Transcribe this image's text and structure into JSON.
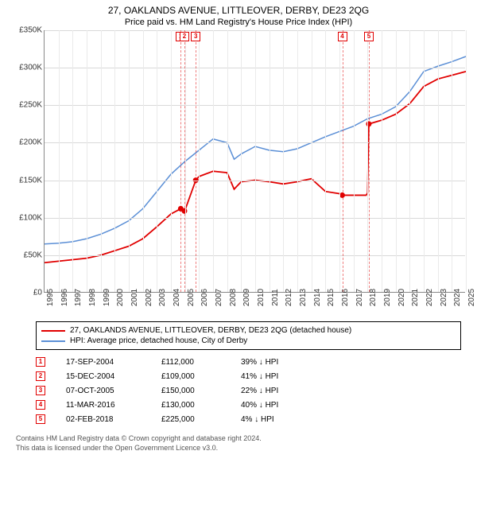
{
  "title": "27, OAKLANDS AVENUE, LITTLEOVER, DERBY, DE23 2QG",
  "subtitle": "Price paid vs. HM Land Registry's House Price Index (HPI)",
  "chart": {
    "type": "line",
    "background_color": "#ffffff",
    "grid_color": "#d9d9d9",
    "ylim": [
      0,
      350000
    ],
    "ytick_step": 50000,
    "ytick_labels": [
      "£0",
      "£50K",
      "£100K",
      "£150K",
      "£200K",
      "£250K",
      "£300K",
      "£350K"
    ],
    "xlim": [
      1995,
      2025
    ],
    "xticks": [
      1995,
      1996,
      1997,
      1998,
      1999,
      2000,
      2001,
      2002,
      2003,
      2004,
      2005,
      2006,
      2007,
      2008,
      2009,
      2010,
      2011,
      2012,
      2013,
      2014,
      2015,
      2016,
      2017,
      2018,
      2019,
      2020,
      2021,
      2022,
      2023,
      2024,
      2025
    ],
    "series": [
      {
        "name": "property",
        "label": "27, OAKLANDS AVENUE, LITTLEOVER, DERBY, DE23 2QG (detached house)",
        "color": "#e10000",
        "line_width": 1.8,
        "points": [
          [
            1995,
            40000
          ],
          [
            1996,
            42000
          ],
          [
            1997,
            44000
          ],
          [
            1998,
            46000
          ],
          [
            1999,
            50000
          ],
          [
            2000,
            56000
          ],
          [
            2001,
            62000
          ],
          [
            2002,
            72000
          ],
          [
            2003,
            88000
          ],
          [
            2004,
            105000
          ],
          [
            2004.7,
            112000
          ],
          [
            2004.96,
            109000
          ],
          [
            2005,
            110000
          ],
          [
            2005.77,
            150000
          ],
          [
            2006,
            155000
          ],
          [
            2007,
            162000
          ],
          [
            2008,
            160000
          ],
          [
            2008.5,
            138000
          ],
          [
            2009,
            148000
          ],
          [
            2010,
            150000
          ],
          [
            2011,
            148000
          ],
          [
            2012,
            145000
          ],
          [
            2013,
            148000
          ],
          [
            2014,
            152000
          ],
          [
            2015,
            135000
          ],
          [
            2016,
            132000
          ],
          [
            2016.2,
            130000
          ],
          [
            2017,
            130000
          ],
          [
            2017.9,
            130000
          ],
          [
            2018,
            133000
          ],
          [
            2018.09,
            225000
          ],
          [
            2019,
            230000
          ],
          [
            2020,
            238000
          ],
          [
            2021,
            252000
          ],
          [
            2022,
            275000
          ],
          [
            2023,
            285000
          ],
          [
            2024,
            290000
          ],
          [
            2025,
            295000
          ]
        ]
      },
      {
        "name": "hpi",
        "label": "HPI: Average price, detached house, City of Derby",
        "color": "#5b8fd6",
        "line_width": 1.5,
        "points": [
          [
            1995,
            65000
          ],
          [
            1996,
            66000
          ],
          [
            1997,
            68000
          ],
          [
            1998,
            72000
          ],
          [
            1999,
            78000
          ],
          [
            2000,
            86000
          ],
          [
            2001,
            96000
          ],
          [
            2002,
            112000
          ],
          [
            2003,
            135000
          ],
          [
            2004,
            158000
          ],
          [
            2005,
            175000
          ],
          [
            2006,
            190000
          ],
          [
            2007,
            205000
          ],
          [
            2008,
            200000
          ],
          [
            2008.5,
            178000
          ],
          [
            2009,
            185000
          ],
          [
            2010,
            195000
          ],
          [
            2011,
            190000
          ],
          [
            2012,
            188000
          ],
          [
            2013,
            192000
          ],
          [
            2014,
            200000
          ],
          [
            2015,
            208000
          ],
          [
            2016,
            215000
          ],
          [
            2017,
            222000
          ],
          [
            2018,
            232000
          ],
          [
            2019,
            238000
          ],
          [
            2020,
            248000
          ],
          [
            2021,
            268000
          ],
          [
            2022,
            295000
          ],
          [
            2023,
            302000
          ],
          [
            2024,
            308000
          ],
          [
            2025,
            315000
          ]
        ]
      }
    ],
    "sale_markers": [
      {
        "n": "1",
        "year": 2004.7,
        "price": 112000
      },
      {
        "n": "2",
        "year": 2004.96,
        "price": 109000
      },
      {
        "n": "3",
        "year": 2005.77,
        "price": 150000
      },
      {
        "n": "4",
        "year": 2016.2,
        "price": 130000
      },
      {
        "n": "5",
        "year": 2018.09,
        "price": 225000
      }
    ]
  },
  "legend": [
    {
      "color": "#e10000",
      "label": "27, OAKLANDS AVENUE, LITTLEOVER, DERBY, DE23 2QG (detached house)"
    },
    {
      "color": "#5b8fd6",
      "label": "HPI: Average price, detached house, City of Derby"
    }
  ],
  "transactions": [
    {
      "n": "1",
      "date": "17-SEP-2004",
      "price": "£112,000",
      "pct": "39% ↓ HPI"
    },
    {
      "n": "2",
      "date": "15-DEC-2004",
      "price": "£109,000",
      "pct": "41% ↓ HPI"
    },
    {
      "n": "3",
      "date": "07-OCT-2005",
      "price": "£150,000",
      "pct": "22% ↓ HPI"
    },
    {
      "n": "4",
      "date": "11-MAR-2016",
      "price": "£130,000",
      "pct": "40% ↓ HPI"
    },
    {
      "n": "5",
      "date": "02-FEB-2018",
      "price": "£225,000",
      "pct": "4% ↓ HPI"
    }
  ],
  "footer_line1": "Contains HM Land Registry data © Crown copyright and database right 2024.",
  "footer_line2": "This data is licensed under the Open Government Licence v3.0."
}
